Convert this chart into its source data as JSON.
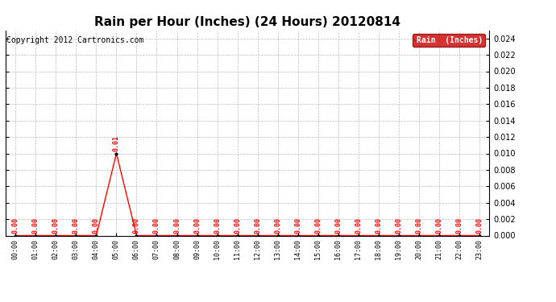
{
  "title": "Rain per Hour (Inches) (24 Hours) 20120814",
  "copyright": "Copyright 2012 Cartronics.com",
  "legend_label": "Rain  (Inches)",
  "hours": [
    "00:00",
    "01:00",
    "02:00",
    "03:00",
    "04:00",
    "05:00",
    "06:00",
    "07:00",
    "08:00",
    "09:00",
    "10:00",
    "11:00",
    "12:00",
    "13:00",
    "14:00",
    "15:00",
    "16:00",
    "17:00",
    "18:00",
    "19:00",
    "20:00",
    "21:00",
    "22:00",
    "23:00"
  ],
  "values": [
    0.0,
    0.0,
    0.0,
    0.0,
    0.0,
    0.01,
    0.0,
    0.0,
    0.0,
    0.0,
    0.0,
    0.0,
    0.0,
    0.0,
    0.0,
    0.0,
    0.0,
    0.0,
    0.0,
    0.0,
    0.0,
    0.0,
    0.0,
    0.0
  ],
  "ylim": [
    0.0,
    0.025
  ],
  "yticks": [
    0.0,
    0.002,
    0.004,
    0.006,
    0.008,
    0.01,
    0.012,
    0.014,
    0.016,
    0.018,
    0.02,
    0.022,
    0.024
  ],
  "line_color": "#ff0000",
  "marker_color": "#000000",
  "bg_color": "#ffffff",
  "grid_color": "#bbbbbb",
  "title_fontsize": 11,
  "copyright_fontsize": 7,
  "label_fontsize": 6,
  "ytick_fontsize": 7,
  "xtick_fontsize": 6,
  "annotation_color": "#ff0000",
  "legend_bg": "#cc0000",
  "legend_text_color": "#ffffff"
}
